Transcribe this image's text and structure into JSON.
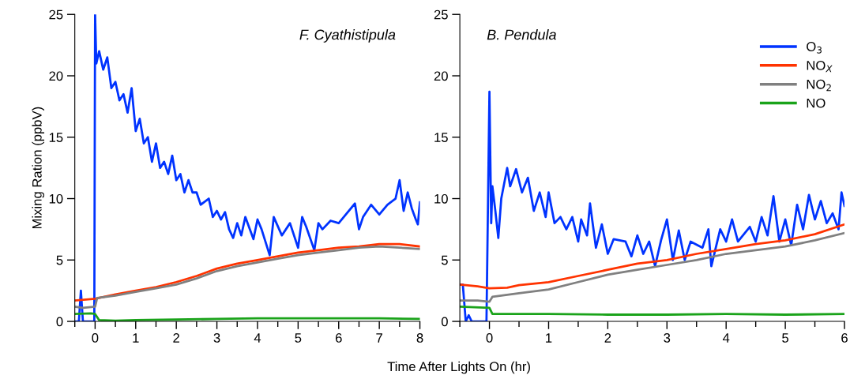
{
  "chart_data": [
    {
      "type": "line",
      "ylabel": "Mixing Ration (ppbV)",
      "xlabel": "Time After Lights On (hr)",
      "annotations": [
        "F. Cyathistipula"
      ],
      "xlim": [
        -0.5,
        8
      ],
      "ylim": [
        0,
        25
      ],
      "xticks": [
        {
          "value": -0.5,
          "label": null
        },
        0,
        {
          "value": 0.5,
          "label": null
        },
        1,
        {
          "value": 1.5,
          "label": null
        },
        2,
        {
          "value": 2.5,
          "label": null
        },
        3,
        {
          "value": 3.5,
          "label": null
        },
        4,
        {
          "value": 4.5,
          "label": null
        },
        5,
        {
          "value": 5.5,
          "label": null
        },
        6,
        {
          "value": 6.5,
          "label": null
        },
        7,
        {
          "value": 7.5,
          "label": null
        },
        8
      ],
      "yticks": [
        0,
        5,
        10,
        15,
        20,
        25
      ],
      "grid": false,
      "legend": false,
      "line_style": "solid",
      "marker": "none",
      "series": [
        {
          "color": "#0033ff",
          "x": [
            -0.5,
            -0.4,
            -0.35,
            -0.3,
            -0.2,
            -0.1,
            -0.02,
            0,
            0.03,
            0.1,
            0.2,
            0.3,
            0.4,
            0.5,
            0.6,
            0.7,
            0.8,
            0.9,
            1.0,
            1.1,
            1.2,
            1.3,
            1.4,
            1.5,
            1.6,
            1.7,
            1.8,
            1.9,
            2.0,
            2.1,
            2.2,
            2.3,
            2.4,
            2.5,
            2.6,
            2.8,
            2.9,
            3.0,
            3.1,
            3.2,
            3.3,
            3.4,
            3.5,
            3.6,
            3.7,
            3.9,
            4.0,
            4.1,
            4.3,
            4.4,
            4.6,
            4.8,
            5.0,
            5.1,
            5.2,
            5.4,
            5.5,
            5.6,
            5.8,
            6.0,
            6.2,
            6.4,
            6.5,
            6.6,
            6.8,
            7.0,
            7.2,
            7.4,
            7.5,
            7.6,
            7.7,
            7.8,
            7.9,
            7.95,
            8.0
          ],
          "values": [
            0,
            0,
            2.5,
            0,
            0,
            0,
            0,
            25,
            21,
            22,
            20.5,
            21.5,
            19,
            19.5,
            18,
            18.5,
            17,
            19,
            15.5,
            16.5,
            14.5,
            15,
            13,
            14.5,
            12.5,
            13,
            12,
            13.5,
            11.5,
            12,
            10.5,
            11.5,
            10.5,
            10.5,
            9.5,
            10,
            8.5,
            9,
            8.3,
            8.9,
            7.5,
            6.8,
            8,
            7,
            8.5,
            6.7,
            8.3,
            7.5,
            5.4,
            8.5,
            7,
            8,
            6,
            8.5,
            7.7,
            5.8,
            8,
            7.5,
            8.2,
            8,
            8.8,
            9.6,
            7.5,
            8.5,
            9.5,
            8.7,
            9.5,
            10,
            11.5,
            9,
            10.5,
            9.2,
            8.3,
            7.9,
            9.7
          ]
        },
        {
          "color": "#ff3300",
          "x": [
            -0.5,
            0,
            0.5,
            1,
            1.5,
            2,
            2.5,
            3,
            3.5,
            4,
            4.5,
            5,
            5.5,
            6,
            6.5,
            7,
            7.5,
            8
          ],
          "values": [
            1.7,
            1.85,
            2.2,
            2.5,
            2.8,
            3.2,
            3.7,
            4.3,
            4.7,
            5.0,
            5.3,
            5.6,
            5.8,
            6.0,
            6.1,
            6.3,
            6.3,
            6.1
          ]
        },
        {
          "color": "#808080",
          "x": [
            -0.5,
            -0.3,
            0,
            0.05,
            0.5,
            1,
            1.5,
            2,
            2.5,
            3,
            3.5,
            4,
            4.5,
            5,
            5.5,
            6,
            6.5,
            7,
            7.5,
            8
          ],
          "values": [
            1.2,
            1.1,
            1.2,
            1.9,
            2.1,
            2.4,
            2.7,
            3.0,
            3.5,
            4.1,
            4.5,
            4.8,
            5.1,
            5.4,
            5.6,
            5.8,
            6.0,
            6.1,
            6.0,
            5.9
          ]
        },
        {
          "color": "#1aa31a",
          "x": [
            -0.5,
            -0.1,
            0,
            0.1,
            0.5,
            1,
            2,
            3,
            4,
            5,
            6,
            7,
            8
          ],
          "values": [
            0.6,
            0.65,
            0.6,
            0.1,
            0.05,
            0.1,
            0.15,
            0.2,
            0.25,
            0.25,
            0.25,
            0.25,
            0.2
          ]
        }
      ]
    },
    {
      "type": "line",
      "annotations": [
        "B. Pendula"
      ],
      "xlim": [
        -0.5,
        6
      ],
      "ylim": [
        0,
        25
      ],
      "xticks": [
        {
          "value": -0.5,
          "label": null
        },
        0,
        {
          "value": 0.5,
          "label": null
        },
        1,
        {
          "value": 1.5,
          "label": null
        },
        2,
        {
          "value": 2.5,
          "label": null
        },
        3,
        {
          "value": 3.5,
          "label": null
        },
        4,
        {
          "value": 4.5,
          "label": null
        },
        5,
        {
          "value": 5.5,
          "label": null
        },
        6
      ],
      "yticks": [
        0,
        5,
        10,
        15,
        20,
        25
      ],
      "grid": false,
      "legend": "top right",
      "line_style": "solid",
      "marker": "none",
      "series": [
        {
          "name": "O$_{3}$",
          "color": "#0033ff",
          "x": [
            -0.5,
            -0.45,
            -0.4,
            -0.35,
            -0.3,
            -0.05,
            0,
            0.03,
            0.05,
            0.1,
            0.15,
            0.2,
            0.3,
            0.35,
            0.45,
            0.55,
            0.65,
            0.75,
            0.85,
            0.95,
            1.0,
            1.1,
            1.2,
            1.3,
            1.4,
            1.5,
            1.55,
            1.65,
            1.7,
            1.8,
            1.9,
            2.0,
            2.1,
            2.3,
            2.4,
            2.5,
            2.6,
            2.7,
            2.8,
            2.9,
            3.0,
            3.1,
            3.2,
            3.3,
            3.4,
            3.6,
            3.7,
            3.75,
            3.9,
            4.0,
            4.1,
            4.2,
            4.4,
            4.5,
            4.6,
            4.7,
            4.8,
            4.9,
            5.0,
            5.1,
            5.2,
            5.3,
            5.4,
            5.5,
            5.6,
            5.7,
            5.8,
            5.9,
            5.95,
            6.0
          ],
          "values": [
            3,
            3,
            0,
            0.5,
            0,
            0,
            18.7,
            8,
            11,
            9,
            6.8,
            10,
            12.5,
            11,
            12.4,
            10.5,
            11.7,
            9,
            10.5,
            8.5,
            10.5,
            8,
            8.5,
            7.5,
            8.5,
            6.5,
            8.3,
            7,
            9.6,
            6,
            7.9,
            5.5,
            6.7,
            6.5,
            5.3,
            7,
            5.5,
            6.5,
            4.5,
            6.6,
            8.3,
            5,
            7.4,
            5,
            6.5,
            6,
            7.5,
            4.5,
            7.5,
            6.5,
            8.3,
            6.5,
            7.7,
            6.5,
            8.5,
            7,
            10.2,
            6.5,
            8.3,
            6.2,
            9.5,
            7.5,
            10.3,
            8.3,
            9.8,
            8,
            8.8,
            7.5,
            10.5,
            9.4
          ]
        },
        {
          "name": "NO$_{X}$",
          "color": "#ff3300",
          "x": [
            -0.5,
            -0.2,
            0,
            0.3,
            0.5,
            1,
            1.5,
            2,
            2.5,
            3,
            3.5,
            4,
            4.5,
            5,
            5.5,
            6
          ],
          "values": [
            3.0,
            2.85,
            2.7,
            2.75,
            2.95,
            3.2,
            3.7,
            4.2,
            4.7,
            5.0,
            5.5,
            5.9,
            6.3,
            6.6,
            7.1,
            7.9
          ]
        },
        {
          "name": "NO$_{2}$",
          "color": "#808080",
          "x": [
            -0.5,
            -0.2,
            0,
            0.05,
            0.5,
            1,
            1.5,
            2,
            2.5,
            3,
            3.5,
            4,
            4.5,
            5,
            5.5,
            6
          ],
          "values": [
            1.7,
            1.7,
            1.6,
            2.0,
            2.3,
            2.6,
            3.2,
            3.8,
            4.2,
            4.6,
            5.0,
            5.5,
            5.8,
            6.1,
            6.6,
            7.2
          ]
        },
        {
          "name": "NO",
          "color": "#1aa31a",
          "x": [
            -0.5,
            0,
            0.05,
            1,
            2,
            3,
            4,
            5,
            6
          ],
          "values": [
            1.2,
            1.1,
            0.6,
            0.6,
            0.55,
            0.55,
            0.6,
            0.55,
            0.6
          ]
        }
      ]
    }
  ]
}
